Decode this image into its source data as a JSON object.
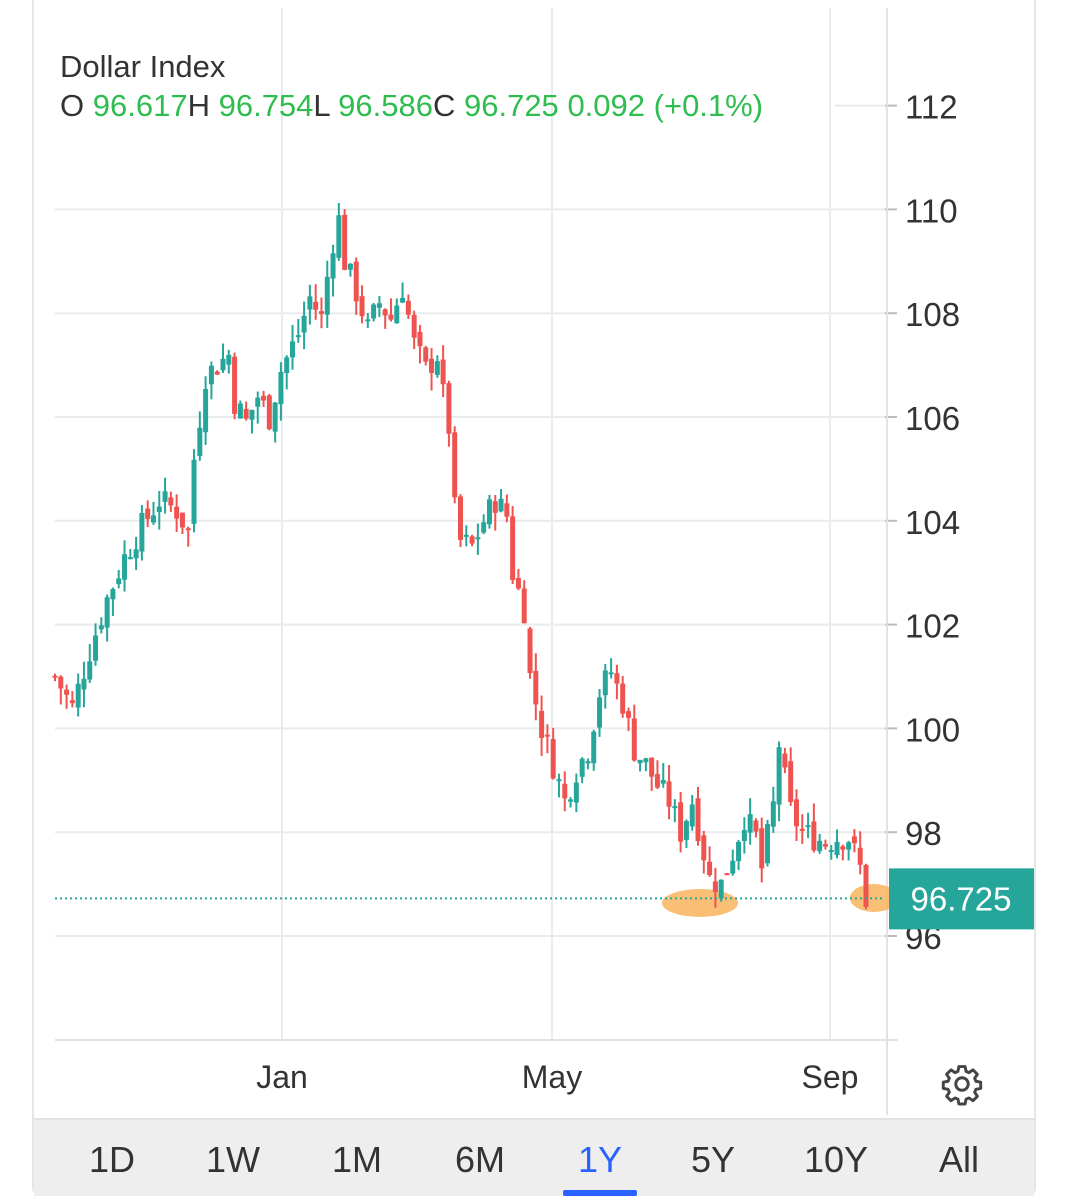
{
  "legend": {
    "title": "Dollar Index",
    "o_label": "O",
    "o_value": "96.617",
    "h_label": "H",
    "h_value": "96.754",
    "l_label": "L",
    "l_value": "96.586",
    "c_label": "C",
    "c_value": "96.725",
    "change": "0.092",
    "change_pct": "(+0.1%)"
  },
  "last_price_label": "96.725",
  "tabs": [
    {
      "label": "1D"
    },
    {
      "label": "1W"
    },
    {
      "label": "1M"
    },
    {
      "label": "6M"
    },
    {
      "label": "1Y",
      "active": true
    },
    {
      "label": "5Y"
    },
    {
      "label": "10Y"
    },
    {
      "label": "All"
    }
  ],
  "colors": {
    "up": "#26a69a",
    "down": "#ef5350",
    "grid": "#e8ecee",
    "price_tag": "#26a69a",
    "highlight": "#f7b45d",
    "active_tab": "#2962ff",
    "legend_value": "#2ebd4e"
  },
  "icons": {
    "settings": "gear-icon"
  },
  "chart_data": {
    "type": "candlestick",
    "title": "Dollar Index",
    "x_tick_labels": [
      "Jan",
      "May",
      "Sep"
    ],
    "y_ticks": [
      96,
      98,
      100,
      102,
      104,
      106,
      108,
      110,
      112
    ],
    "ylim": [
      94,
      113
    ],
    "grid": true,
    "last_price": 96.725,
    "approx_close_path": [
      [
        0,
        101.0
      ],
      [
        3,
        100.4
      ],
      [
        6,
        101.5
      ],
      [
        9,
        102.5
      ],
      [
        12,
        103.3
      ],
      [
        15,
        103.9
      ],
      [
        18,
        104.4
      ],
      [
        21,
        104.2
      ],
      [
        23,
        103.8
      ],
      [
        24,
        105.2
      ],
      [
        26,
        106.8
      ],
      [
        28,
        107.0
      ],
      [
        30,
        107.2
      ],
      [
        31,
        106.3
      ],
      [
        33,
        105.9
      ],
      [
        35,
        106.4
      ],
      [
        37,
        106.0
      ],
      [
        39,
        106.9
      ],
      [
        42,
        107.6
      ],
      [
        44,
        108.3
      ],
      [
        46,
        107.9
      ],
      [
        47,
        108.7
      ],
      [
        48,
        109.4
      ],
      [
        49,
        109.8
      ],
      [
        50,
        109.0
      ],
      [
        52,
        108.4
      ],
      [
        54,
        107.7
      ],
      [
        56,
        108.2
      ],
      [
        58,
        107.9
      ],
      [
        60,
        108.5
      ],
      [
        62,
        107.4
      ],
      [
        64,
        106.9
      ],
      [
        66,
        107.2
      ],
      [
        67,
        106.4
      ],
      [
        68,
        105.8
      ],
      [
        69,
        104.2
      ],
      [
        70,
        103.6
      ],
      [
        72,
        103.5
      ],
      [
        74,
        104.0
      ],
      [
        76,
        104.4
      ],
      [
        78,
        104.1
      ],
      [
        79,
        103.0
      ],
      [
        81,
        102.3
      ],
      [
        82,
        101.0
      ],
      [
        84,
        100.0
      ],
      [
        86,
        99.3
      ],
      [
        88,
        98.6
      ],
      [
        90,
        99.2
      ],
      [
        92,
        99.6
      ],
      [
        94,
        100.7
      ],
      [
        96,
        101.1
      ],
      [
        98,
        100.5
      ],
      [
        100,
        99.6
      ],
      [
        102,
        99.3
      ],
      [
        104,
        98.9
      ],
      [
        106,
        98.6
      ],
      [
        108,
        98.0
      ],
      [
        110,
        98.6
      ],
      [
        111,
        98.1
      ],
      [
        113,
        97.1
      ],
      [
        115,
        97.0
      ],
      [
        117,
        97.6
      ],
      [
        119,
        98.3
      ],
      [
        121,
        97.9
      ],
      [
        122,
        97.3
      ],
      [
        124,
        98.5
      ],
      [
        125,
        99.7
      ],
      [
        126,
        99.0
      ],
      [
        127,
        98.4
      ],
      [
        129,
        98.0
      ],
      [
        131,
        97.9
      ],
      [
        133,
        97.8
      ],
      [
        135,
        97.9
      ],
      [
        137,
        97.9
      ],
      [
        139,
        97.3
      ],
      [
        140,
        96.7
      ]
    ]
  }
}
